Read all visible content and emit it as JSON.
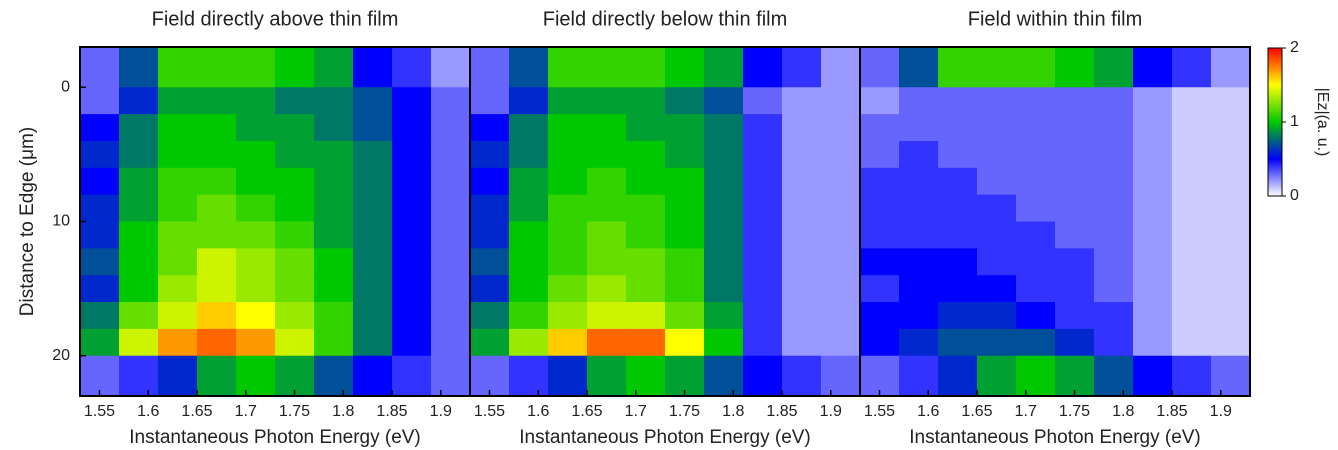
{
  "chart_data": [
    {
      "type": "heatmap",
      "title": "Field directly above thin film",
      "x_label": "Instantaneous Photon Energy (eV)",
      "y_label": "Distance to Edge (μm)",
      "xlim": [
        1.53,
        1.93
      ],
      "xticks": [
        1.55,
        1.6,
        1.65,
        1.7,
        1.75,
        1.8,
        1.85,
        1.9
      ],
      "ylim": [
        -3,
        23
      ],
      "yticks": [
        0,
        10,
        20
      ],
      "y_inverted": true,
      "x_bins": [
        1.53,
        1.57,
        1.61,
        1.65,
        1.69,
        1.73,
        1.77,
        1.81,
        1.85,
        1.89,
        1.93
      ],
      "y_bins": [
        -3,
        0,
        2,
        4,
        6,
        8,
        10,
        12,
        14,
        16,
        18,
        20,
        23
      ],
      "z": [
        [
          0.3,
          0.7,
          1.1,
          1.1,
          1.1,
          1.0,
          0.9,
          0.5,
          0.4,
          0.2
        ],
        [
          0.3,
          0.6,
          0.9,
          0.9,
          0.9,
          0.8,
          0.8,
          0.7,
          0.5,
          0.3
        ],
        [
          0.5,
          0.8,
          1.0,
          1.0,
          0.9,
          0.9,
          0.8,
          0.7,
          0.5,
          0.3
        ],
        [
          0.6,
          0.8,
          1.0,
          1.0,
          1.0,
          0.9,
          0.9,
          0.8,
          0.5,
          0.3
        ],
        [
          0.5,
          0.9,
          1.1,
          1.1,
          1.0,
          1.0,
          0.9,
          0.8,
          0.5,
          0.3
        ],
        [
          0.6,
          0.9,
          1.1,
          1.2,
          1.1,
          1.0,
          0.9,
          0.8,
          0.5,
          0.3
        ],
        [
          0.6,
          1.0,
          1.2,
          1.2,
          1.2,
          1.1,
          0.9,
          0.8,
          0.5,
          0.3
        ],
        [
          0.7,
          1.0,
          1.2,
          1.4,
          1.3,
          1.2,
          1.0,
          0.8,
          0.5,
          0.3
        ],
        [
          0.6,
          1.0,
          1.3,
          1.4,
          1.3,
          1.2,
          1.0,
          0.8,
          0.5,
          0.3
        ],
        [
          0.8,
          1.2,
          1.4,
          1.6,
          1.5,
          1.3,
          1.1,
          0.8,
          0.5,
          0.3
        ],
        [
          0.9,
          1.4,
          1.7,
          1.8,
          1.7,
          1.4,
          1.1,
          0.8,
          0.5,
          0.3
        ],
        [
          0.3,
          0.4,
          0.6,
          0.9,
          1.0,
          0.9,
          0.7,
          0.5,
          0.4,
          0.3
        ]
      ]
    },
    {
      "type": "heatmap",
      "title": "Field directly below thin film",
      "x_label": "Instantaneous Photon Energy (eV)",
      "xlim": [
        1.53,
        1.93
      ],
      "xticks": [
        1.55,
        1.6,
        1.65,
        1.7,
        1.75,
        1.8,
        1.85,
        1.9
      ],
      "ylim": [
        -3,
        23
      ],
      "y_inverted": true,
      "x_bins": [
        1.53,
        1.57,
        1.61,
        1.65,
        1.69,
        1.73,
        1.77,
        1.81,
        1.85,
        1.89,
        1.93
      ],
      "y_bins": [
        -3,
        0,
        2,
        4,
        6,
        8,
        10,
        12,
        14,
        16,
        18,
        20,
        23
      ],
      "z": [
        [
          0.3,
          0.7,
          1.1,
          1.1,
          1.1,
          1.0,
          0.9,
          0.5,
          0.4,
          0.2
        ],
        [
          0.3,
          0.6,
          0.9,
          0.9,
          0.9,
          0.8,
          0.7,
          0.3,
          0.2,
          0.2
        ],
        [
          0.5,
          0.8,
          1.0,
          1.0,
          0.9,
          0.9,
          0.8,
          0.4,
          0.2,
          0.2
        ],
        [
          0.6,
          0.8,
          1.0,
          1.0,
          1.0,
          0.9,
          0.8,
          0.4,
          0.2,
          0.2
        ],
        [
          0.5,
          0.9,
          1.0,
          1.1,
          1.0,
          1.0,
          0.8,
          0.4,
          0.2,
          0.2
        ],
        [
          0.6,
          0.9,
          1.1,
          1.1,
          1.1,
          1.0,
          0.8,
          0.4,
          0.2,
          0.2
        ],
        [
          0.6,
          1.0,
          1.1,
          1.2,
          1.1,
          1.0,
          0.8,
          0.4,
          0.2,
          0.2
        ],
        [
          0.7,
          1.0,
          1.1,
          1.2,
          1.2,
          1.1,
          0.8,
          0.4,
          0.2,
          0.2
        ],
        [
          0.6,
          1.0,
          1.2,
          1.3,
          1.2,
          1.1,
          0.8,
          0.4,
          0.2,
          0.2
        ],
        [
          0.8,
          1.1,
          1.3,
          1.4,
          1.4,
          1.2,
          0.9,
          0.4,
          0.2,
          0.2
        ],
        [
          0.9,
          1.3,
          1.6,
          1.8,
          1.8,
          1.5,
          1.0,
          0.4,
          0.2,
          0.2
        ],
        [
          0.3,
          0.4,
          0.6,
          0.9,
          1.0,
          0.9,
          0.7,
          0.5,
          0.4,
          0.3
        ]
      ]
    },
    {
      "type": "heatmap",
      "title": "Field within thin film",
      "x_label": "Instantaneous Photon Energy (eV)",
      "xlim": [
        1.53,
        1.93
      ],
      "xticks": [
        1.55,
        1.6,
        1.65,
        1.7,
        1.75,
        1.8,
        1.85,
        1.9
      ],
      "ylim": [
        -3,
        23
      ],
      "y_inverted": true,
      "x_bins": [
        1.53,
        1.57,
        1.61,
        1.65,
        1.69,
        1.73,
        1.77,
        1.81,
        1.85,
        1.89,
        1.93
      ],
      "y_bins": [
        -3,
        0,
        2,
        4,
        6,
        8,
        10,
        12,
        14,
        16,
        18,
        20,
        23
      ],
      "z": [
        [
          0.3,
          0.7,
          1.1,
          1.1,
          1.1,
          1.0,
          0.9,
          0.5,
          0.4,
          0.2
        ],
        [
          0.2,
          0.3,
          0.3,
          0.3,
          0.3,
          0.3,
          0.3,
          0.2,
          0.1,
          0.1
        ],
        [
          0.3,
          0.3,
          0.3,
          0.3,
          0.3,
          0.3,
          0.3,
          0.2,
          0.1,
          0.1
        ],
        [
          0.3,
          0.4,
          0.3,
          0.3,
          0.3,
          0.3,
          0.3,
          0.2,
          0.1,
          0.1
        ],
        [
          0.4,
          0.4,
          0.4,
          0.3,
          0.3,
          0.3,
          0.3,
          0.2,
          0.1,
          0.1
        ],
        [
          0.4,
          0.4,
          0.4,
          0.4,
          0.3,
          0.3,
          0.3,
          0.2,
          0.1,
          0.1
        ],
        [
          0.4,
          0.4,
          0.4,
          0.4,
          0.4,
          0.3,
          0.3,
          0.2,
          0.1,
          0.1
        ],
        [
          0.5,
          0.5,
          0.5,
          0.4,
          0.4,
          0.4,
          0.3,
          0.2,
          0.1,
          0.1
        ],
        [
          0.4,
          0.5,
          0.5,
          0.5,
          0.4,
          0.4,
          0.3,
          0.2,
          0.1,
          0.1
        ],
        [
          0.5,
          0.5,
          0.6,
          0.6,
          0.5,
          0.4,
          0.4,
          0.2,
          0.1,
          0.1
        ],
        [
          0.5,
          0.6,
          0.7,
          0.7,
          0.7,
          0.6,
          0.4,
          0.2,
          0.1,
          0.1
        ],
        [
          0.3,
          0.4,
          0.6,
          0.9,
          1.0,
          0.9,
          0.7,
          0.5,
          0.4,
          0.3
        ]
      ]
    },
    {
      "type": "colorbar",
      "label": "|Ez|(a. u.)",
      "zlim": [
        0,
        2
      ],
      "zticks": [
        0,
        1,
        2
      ],
      "colormap": [
        "#ffffff",
        "#0000ff",
        "#00c800",
        "#ffff00",
        "#ff0000"
      ]
    }
  ]
}
